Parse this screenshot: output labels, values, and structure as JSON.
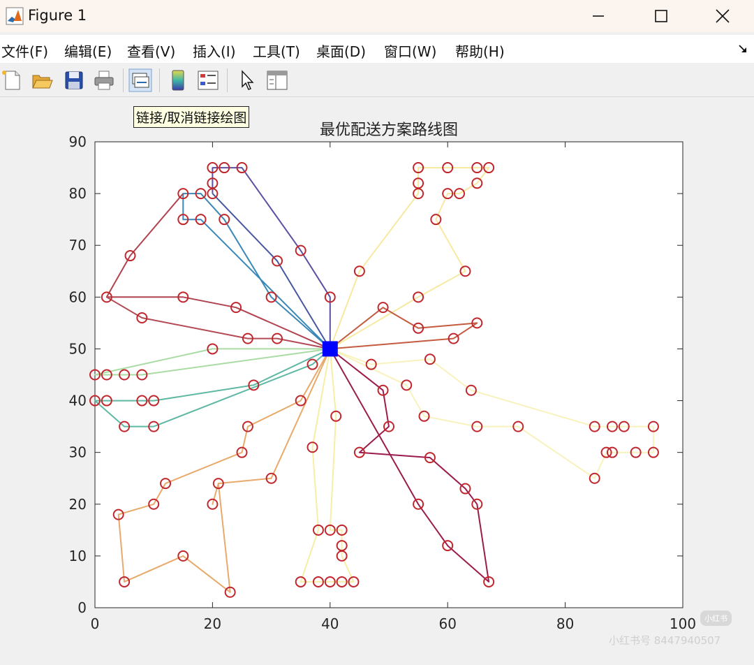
{
  "window": {
    "title": "Figure 1"
  },
  "menu": [
    "文件(F)",
    "编辑(E)",
    "查看(V)",
    "插入(I)",
    "工具(T)",
    "桌面(D)",
    "窗口(W)",
    "帮助(H)"
  ],
  "toolbar": {
    "tooltip": "链接/取消链接绘图",
    "icons": [
      "new-figure-icon",
      "open-file-icon",
      "save-icon",
      "print-icon",
      "link-plot-icon",
      "colorbar-icon",
      "legend-icon",
      "pointer-icon",
      "property-inspector-icon"
    ]
  },
  "watermark": {
    "text": "小红书号 8447940507",
    "logo": "小红书"
  },
  "chart_data": {
    "type": "line",
    "title": "最优配送方案路线图",
    "xlim": [
      0,
      100
    ],
    "ylim": [
      0,
      90
    ],
    "xticks": [
      0,
      20,
      40,
      60,
      80,
      100
    ],
    "yticks": [
      0,
      10,
      20,
      30,
      40,
      50,
      60,
      70,
      80,
      90
    ],
    "grid": false,
    "depot": {
      "x": 40,
      "y": 50,
      "color": "#0000ff"
    },
    "customer_marker_color": "#c0272d",
    "routes": [
      {
        "color": "#5e4fa2",
        "points": [
          [
            40,
            50
          ],
          [
            40,
            60
          ],
          [
            35,
            69
          ],
          [
            25,
            85
          ],
          [
            22,
            85
          ],
          [
            20,
            85
          ],
          [
            20,
            82
          ],
          [
            20,
            80
          ]
        ]
      },
      {
        "color": "#47589f",
        "points": [
          [
            40,
            50
          ],
          [
            31,
            67
          ],
          [
            20,
            80
          ]
        ]
      },
      {
        "color": "#3b88b8",
        "points": [
          [
            40,
            50
          ],
          [
            30,
            60
          ],
          [
            22,
            75
          ],
          [
            18,
            80
          ],
          [
            15,
            80
          ],
          [
            15,
            75
          ],
          [
            18,
            75
          ],
          [
            40,
            50
          ]
        ]
      },
      {
        "color": "#b0434f",
        "points": [
          [
            40,
            50
          ],
          [
            24,
            58
          ],
          [
            15,
            60
          ],
          [
            2,
            60
          ],
          [
            6,
            68
          ],
          [
            15,
            80
          ]
        ]
      },
      {
        "color": "#b34a55",
        "points": [
          [
            40,
            50
          ],
          [
            31,
            52
          ],
          [
            26,
            52
          ],
          [
            8,
            56
          ],
          [
            2,
            60
          ]
        ]
      },
      {
        "color": "#a9dca4",
        "points": [
          [
            40,
            50
          ],
          [
            20,
            50
          ],
          [
            0,
            45
          ],
          [
            2,
            45
          ],
          [
            5,
            45
          ],
          [
            8,
            45
          ],
          [
            40,
            50
          ]
        ]
      },
      {
        "color": "#5fb8a4",
        "points": [
          [
            40,
            50
          ],
          [
            27,
            43
          ],
          [
            10,
            40
          ],
          [
            8,
            40
          ],
          [
            2,
            40
          ],
          [
            0,
            40
          ],
          [
            5,
            35
          ],
          [
            10,
            35
          ],
          [
            37,
            47
          ],
          [
            40,
            50
          ]
        ]
      },
      {
        "color": "#e8a96a",
        "points": [
          [
            40,
            50
          ],
          [
            35,
            40
          ],
          [
            26,
            35
          ],
          [
            25,
            30
          ],
          [
            12,
            24
          ],
          [
            10,
            20
          ],
          [
            4,
            18
          ],
          [
            5,
            5
          ],
          [
            15,
            10
          ],
          [
            23,
            3
          ],
          [
            21,
            24
          ],
          [
            20,
            20
          ],
          [
            21,
            24
          ],
          [
            30,
            25
          ],
          [
            40,
            50
          ]
        ]
      },
      {
        "color": "#f6eea6",
        "points": [
          [
            40,
            50
          ],
          [
            37,
            31
          ],
          [
            38,
            15
          ],
          [
            35,
            5
          ],
          [
            38,
            5
          ],
          [
            40,
            5
          ],
          [
            42,
            5
          ],
          [
            44,
            5
          ],
          [
            42,
            10
          ],
          [
            42,
            12
          ],
          [
            42,
            15
          ],
          [
            40,
            15
          ],
          [
            41,
            37
          ],
          [
            40,
            50
          ]
        ]
      },
      {
        "color": "#f8e9a0",
        "points": [
          [
            40,
            50
          ],
          [
            45,
            65
          ],
          [
            55,
            80
          ],
          [
            55,
            82
          ],
          [
            55,
            85
          ],
          [
            60,
            85
          ],
          [
            65,
            85
          ],
          [
            67,
            85
          ],
          [
            65,
            82
          ],
          [
            62,
            80
          ],
          [
            60,
            80
          ],
          [
            58,
            75
          ],
          [
            63,
            65
          ],
          [
            55,
            60
          ],
          [
            40,
            50
          ]
        ]
      },
      {
        "color": "#c45a3f",
        "points": [
          [
            40,
            50
          ],
          [
            49,
            58
          ],
          [
            55,
            54
          ],
          [
            65,
            55
          ],
          [
            61,
            52
          ],
          [
            40,
            50
          ]
        ]
      },
      {
        "color": "#f8f2bc",
        "points": [
          [
            40,
            50
          ],
          [
            47,
            47
          ],
          [
            57,
            48
          ],
          [
            64,
            42
          ],
          [
            85,
            35
          ],
          [
            88,
            35
          ],
          [
            90,
            35
          ],
          [
            95,
            35
          ],
          [
            95,
            30
          ],
          [
            92,
            30
          ],
          [
            88,
            30
          ],
          [
            87,
            30
          ],
          [
            85,
            25
          ],
          [
            72,
            35
          ],
          [
            65,
            35
          ],
          [
            56,
            37
          ],
          [
            53,
            43
          ],
          [
            40,
            50
          ]
        ]
      },
      {
        "color": "#9b1c4c",
        "points": [
          [
            40,
            50
          ],
          [
            49,
            42
          ],
          [
            50,
            35
          ],
          [
            45,
            30
          ],
          [
            57,
            29
          ],
          [
            63,
            23
          ],
          [
            65,
            20
          ],
          [
            67,
            5
          ],
          [
            60,
            12
          ],
          [
            55,
            20
          ],
          [
            40,
            50
          ]
        ]
      }
    ]
  }
}
